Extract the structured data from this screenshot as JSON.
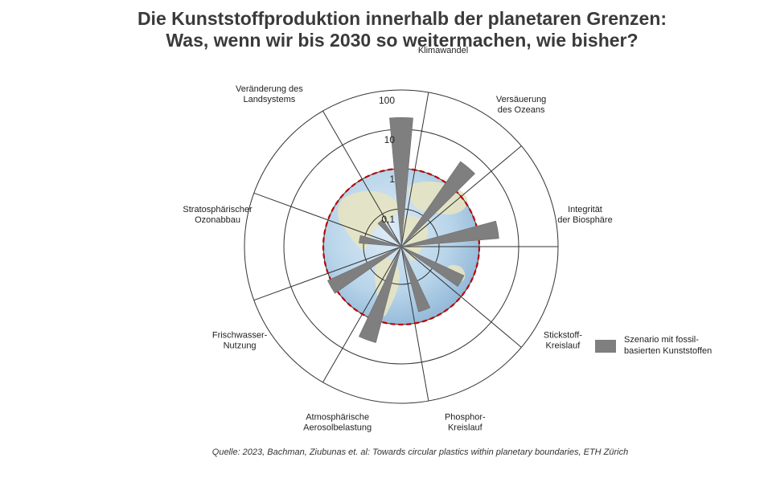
{
  "chart_data": {
    "type": "polar-bar",
    "title_line1": "Die Kunststoffproduktion innerhalb der planetaren Grenzen:",
    "title_line2": "Was, wenn wir bis 2030 so weitermachen, wie bisher?",
    "radial_scale": "log",
    "radial_ticks": [
      "0,1",
      "1",
      "10",
      "100"
    ],
    "radial_tick_values": [
      0.1,
      1,
      10,
      100
    ],
    "boundary_value": 1,
    "categories": [
      "Klimawandel",
      "Versäuerung des Ozeans",
      "Integrität der Biosphäre",
      "Stickstoff-Kreislauf",
      "Phosphor-Kreislauf",
      "Atmosphärische Aerosolbelastung",
      "Frischwasser-Nutzung",
      "Stratosphärischer Ozonabbau",
      "Veränderung des Landsystems"
    ],
    "category_lines": [
      [
        "Klimawandel"
      ],
      [
        "Versäuerung",
        "des Ozeans"
      ],
      [
        "Integrität",
        "der Biosphäre"
      ],
      [
        "Stickstoff-",
        "Kreislauf"
      ],
      [
        "Phosphor-",
        "Kreislauf"
      ],
      [
        "Atmosphärische",
        "Aerosolbelastung"
      ],
      [
        "Frischwasser-",
        "Nutzung"
      ],
      [
        "Stratosphärischer",
        "Ozonabbau"
      ],
      [
        "Veränderung des",
        "Landsystems"
      ]
    ],
    "series": [
      {
        "name": "Szenario mit fossil-basierten Kunststoffen",
        "values": [
          20,
          4.5,
          3.2,
          0.6,
          0.55,
          3.5,
          1.2,
          0.13,
          0.07
        ]
      }
    ],
    "legend_position": "right",
    "colors": {
      "bar": "#7f7f7f",
      "boundary": "#c00000",
      "grid": "#333333",
      "globe_water": "#b8d4ea",
      "globe_land": "#e6e3c2"
    }
  },
  "legend": {
    "text_line1": "Szenario mit fossil-",
    "text_line2": "basierten Kunststoffen"
  },
  "source": "Quelle: 2023, Bachman, Ziubunas et. al: Towards circular plastics within planetary boundaries, ETH Zürich"
}
